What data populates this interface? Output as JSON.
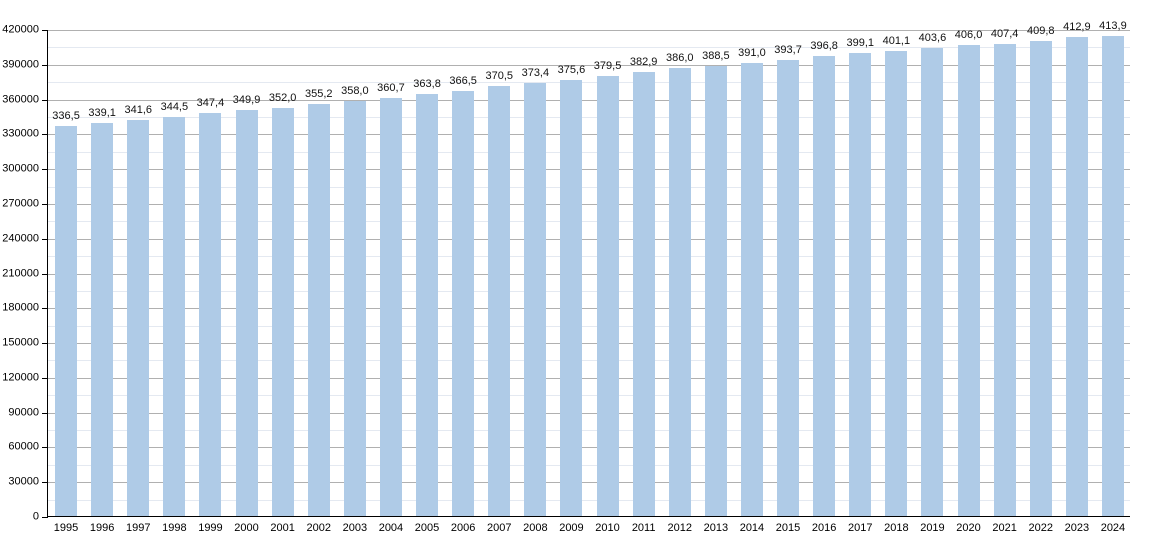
{
  "chart_data": {
    "type": "bar",
    "categories": [
      "1995",
      "1996",
      "1997",
      "1998",
      "1999",
      "2000",
      "2001",
      "2002",
      "2003",
      "2004",
      "2005",
      "2006",
      "2007",
      "2008",
      "2009",
      "2010",
      "2011",
      "2012",
      "2013",
      "2014",
      "2015",
      "2016",
      "2017",
      "2018",
      "2019",
      "2020",
      "2021",
      "2022",
      "2023",
      "2024"
    ],
    "values": [
      336.5,
      339.1,
      341.6,
      344.5,
      347.4,
      349.9,
      352.0,
      355.2,
      358.0,
      360.7,
      363.8,
      366.5,
      370.5,
      373.4,
      375.6,
      379.5,
      382.9,
      386.0,
      388.5,
      391.0,
      393.7,
      396.8,
      399.1,
      401.1,
      403.6,
      406.0,
      407.4,
      409.8,
      412.9,
      413.9
    ],
    "value_labels": [
      "336,5",
      "339,1",
      "341,6",
      "344,5",
      "347,4",
      "349,9",
      "352,0",
      "355,2",
      "358,0",
      "360,7",
      "363,8",
      "366,5",
      "370,5",
      "373,4",
      "375,6",
      "379,5",
      "382,9",
      "386,0",
      "388,5",
      "391,0",
      "393,7",
      "396,8",
      "399,1",
      "401,1",
      "403,6",
      "406,0",
      "407,4",
      "409,8",
      "412,9",
      "413,9"
    ],
    "value_unit_multiplier": 1000,
    "ylim": [
      0,
      420000
    ],
    "y_major_step": 30000,
    "y_minor_step": 15000,
    "y_tick_labels": [
      "0",
      "30000",
      "60000",
      "90000",
      "120000",
      "150000",
      "180000",
      "210000",
      "240000",
      "270000",
      "300000",
      "330000",
      "360000",
      "390000",
      "420000"
    ],
    "grid": true,
    "legend": "none"
  },
  "colors": {
    "background": "#ffffff",
    "bar": "#afcbe7",
    "grid_major": "#b0b0b0",
    "grid_minor": "#e4e9f1",
    "axis": "#000000",
    "text": "#000000"
  }
}
